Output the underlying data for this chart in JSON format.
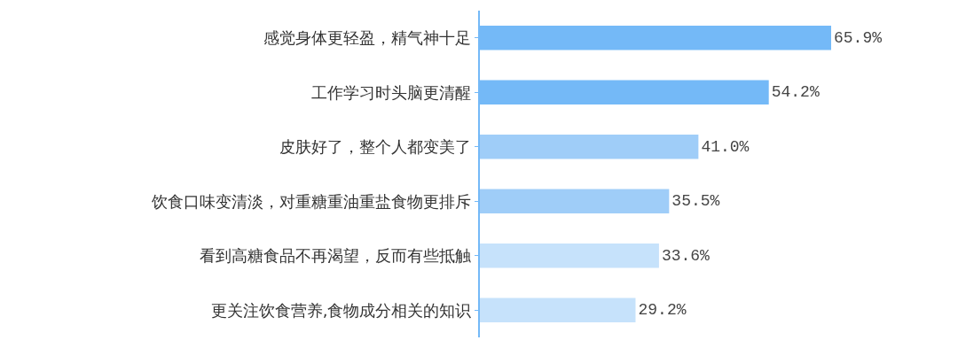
{
  "chart_data": {
    "type": "bar",
    "orientation": "horizontal",
    "categories": [
      "感觉身体更轻盈，精气神十足",
      "工作学习时头脑更清醒",
      "皮肤好了，整个人都变美了",
      "饮食口味变清淡，对重糖重油重盐食物更排斥",
      "看到高糖食品不再渴望，反而有些抵触",
      "更关注饮食营养,食物成分相关的知识"
    ],
    "values": [
      65.9,
      54.2,
      41.0,
      35.5,
      33.6,
      29.2
    ],
    "value_labels": [
      "65.9%",
      "54.2%",
      "41.0%",
      "35.5%",
      "33.6%",
      "29.2%"
    ],
    "colors": [
      "#74b9f7",
      "#74b9f7",
      "#9fcdf8",
      "#9fcdf8",
      "#c6e2fb",
      "#c6e2fb"
    ],
    "xlim": [
      0,
      65.9
    ],
    "tick_labels": "y"
  }
}
